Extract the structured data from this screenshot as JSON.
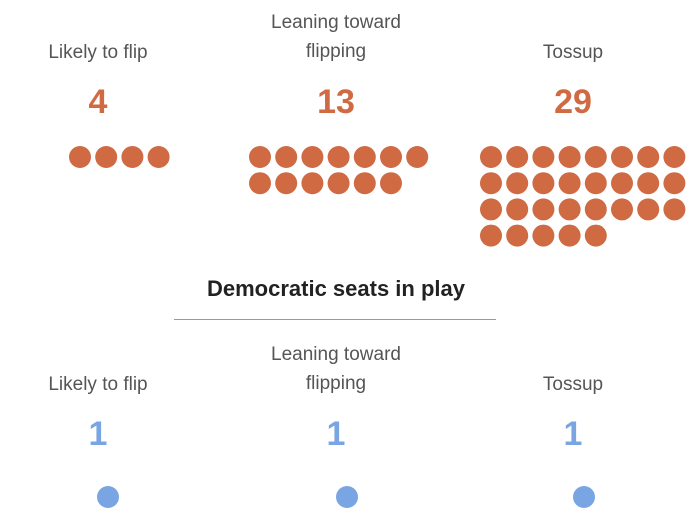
{
  "colors": {
    "republican": "#cf6a43",
    "democratic": "#79a6e3"
  },
  "chart_data": [
    {
      "type": "dot-count",
      "group": "republican",
      "categories": [
        "Likely to flip",
        "Leaning toward\nflipping",
        "Tossup"
      ],
      "values": [
        4,
        13,
        29
      ]
    },
    {
      "type": "dot-count",
      "group": "democratic",
      "title": "Democratic seats in play",
      "categories": [
        "Likely to flip",
        "Leaning toward\nflipping",
        "Tossup"
      ],
      "values": [
        1,
        1,
        1
      ]
    }
  ]
}
